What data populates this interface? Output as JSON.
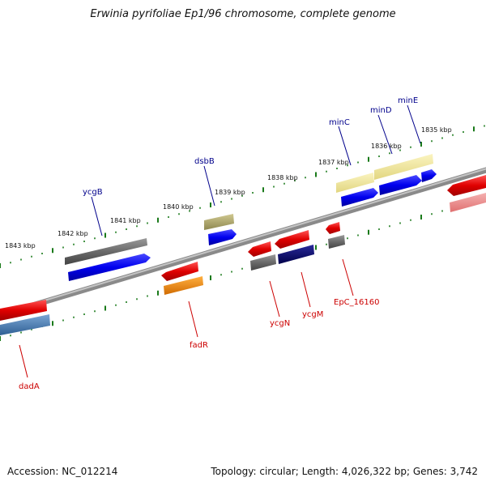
{
  "title": "Erwinia pyrifoliae Ep1/96 chromosome, complete genome",
  "footer": {
    "accession": "Accession: NC_012214",
    "topology": "Topology: circular; Length: 4,026,322 bp; Genes: 3,742"
  },
  "colors": {
    "backbone": "#888888",
    "tick": "#1a7a1a",
    "plus_label": "#00008b",
    "minus_label": "#cc0000"
  },
  "scale": {
    "labels": [
      "1843 kbp",
      "1842 kbp",
      "1841 kbp",
      "1840 kbp",
      "1839 kbp",
      "1838 kbp",
      "1837 kbp",
      "1836 kbp",
      "1835 kbp"
    ]
  },
  "plus_labels": [
    "ycgB",
    "dsbB",
    "minC",
    "minD",
    "minE"
  ],
  "minus_labels": [
    "dadA",
    "fadR",
    "ycgN",
    "ycgM",
    "EpC_16160"
  ]
}
